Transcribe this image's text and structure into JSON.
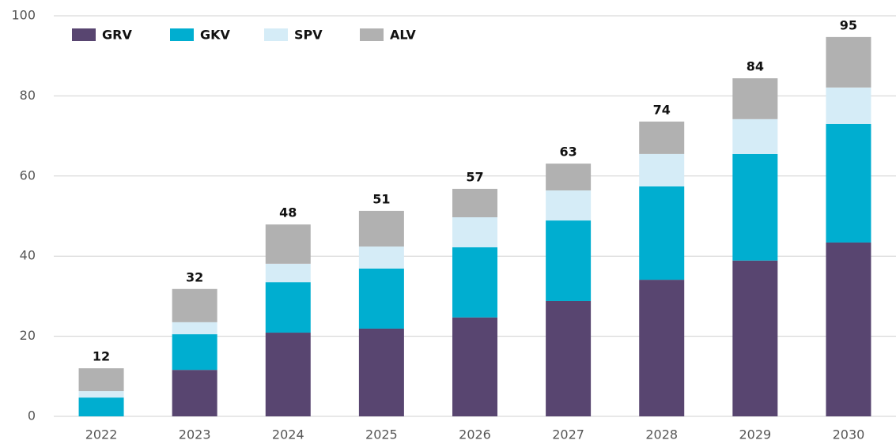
{
  "chart_data": {
    "type": "stacked_bar",
    "categories": [
      "2022",
      "2023",
      "2024",
      "2025",
      "2026",
      "2027",
      "2028",
      "2029",
      "2030"
    ],
    "series": [
      {
        "name": "GRV",
        "color": "#584570",
        "values": [
          0,
          11.6,
          20.9,
          21.9,
          24.7,
          28.8,
          34.1,
          38.9,
          43.4
        ]
      },
      {
        "name": "GKV",
        "color": "#00aed0",
        "values": [
          4.7,
          8.9,
          12.6,
          15.0,
          17.5,
          20.1,
          23.3,
          26.6,
          29.6
        ]
      },
      {
        "name": "SPV",
        "color": "#d5ecf7",
        "values": [
          1.6,
          3.0,
          4.6,
          5.5,
          7.5,
          7.5,
          8.1,
          8.7,
          9.1
        ]
      },
      {
        "name": "ALV",
        "color": "#b1b1b1",
        "values": [
          5.7,
          8.3,
          9.8,
          8.9,
          7.1,
          6.7,
          8.1,
          10.2,
          12.6
        ]
      }
    ],
    "totals": [
      12,
      32,
      48,
      51,
      57,
      63,
      74,
      84,
      95
    ],
    "ylim": [
      0,
      100
    ],
    "yticks": [
      0,
      20,
      40,
      60,
      80,
      100
    ],
    "grid": true,
    "legend": "top-left"
  }
}
